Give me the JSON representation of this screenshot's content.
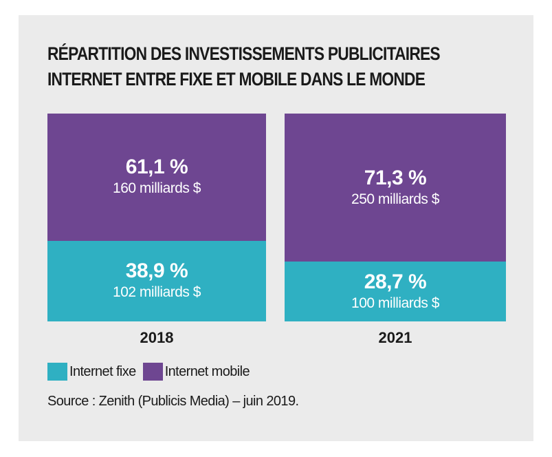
{
  "title_lines": [
    "RÉPARTITION DES INVESTISSEMENTS PUBLICITAIRES",
    "INTERNET ENTRE FIXE ET MOBILE DANS LE MONDE"
  ],
  "colors": {
    "internet_mobile": "#6e4691",
    "internet_fixe": "#2fb0c2",
    "background": "#ebebeb"
  },
  "chart_data": {
    "type": "bar",
    "stacked": true,
    "percent_stacked": true,
    "categories": [
      "2018",
      "2021"
    ],
    "series": [
      {
        "name": "Internet fixe",
        "values": [
          38.9,
          28.7
        ],
        "pct_labels": [
          "38,9 %",
          "28,7 %"
        ],
        "amount_labels": [
          "102 milliards $",
          "100 milliards $"
        ]
      },
      {
        "name": "Internet mobile",
        "values": [
          61.1,
          71.3
        ],
        "pct_labels": [
          "61,1 %",
          "71,3 %"
        ],
        "amount_labels": [
          "160 milliards $",
          "250 milliards $"
        ]
      }
    ],
    "legend_position": "bottom-left"
  },
  "legend": [
    {
      "label": "Internet fixe",
      "color": "#2fb0c2"
    },
    {
      "label": "Internet mobile",
      "color": "#6e4691"
    }
  ],
  "source": "Source : Zenith (Publicis Media) – juin 2019."
}
